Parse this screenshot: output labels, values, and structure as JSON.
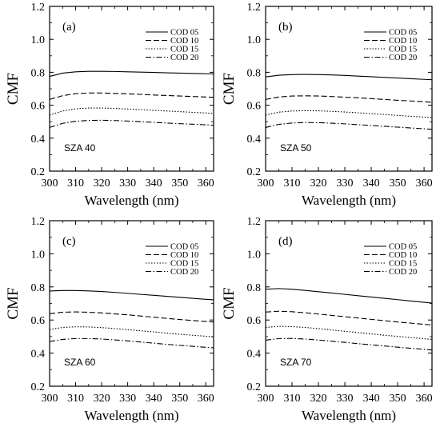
{
  "chart_data": [
    {
      "type": "line",
      "panel_label": "(a)",
      "annotation": "SZA 40",
      "xlabel": "Wavelength (nm)",
      "ylabel": "CMF",
      "xlim": [
        300,
        363
      ],
      "ylim": [
        0.2,
        1.2
      ],
      "xticks": [
        300,
        310,
        320,
        330,
        340,
        350,
        360
      ],
      "yticks": [
        "0.2",
        "0.4",
        "0.6",
        "0.8",
        "1.0",
        "1.2"
      ],
      "legend_position": "top-right",
      "x": [
        300,
        305,
        310,
        315,
        320,
        325,
        330,
        335,
        340,
        345,
        350,
        355,
        360,
        363
      ],
      "series": [
        {
          "name": "COD 05",
          "style": "solid",
          "values": [
            0.775,
            0.795,
            0.803,
            0.806,
            0.806,
            0.805,
            0.803,
            0.801,
            0.799,
            0.797,
            0.795,
            0.793,
            0.791,
            0.79
          ]
        },
        {
          "name": "COD 10",
          "style": "dashed",
          "values": [
            0.635,
            0.658,
            0.67,
            0.674,
            0.674,
            0.672,
            0.669,
            0.666,
            0.662,
            0.659,
            0.656,
            0.653,
            0.65,
            0.648
          ]
        },
        {
          "name": "COD 15",
          "style": "dotted",
          "values": [
            0.54,
            0.565,
            0.578,
            0.583,
            0.583,
            0.581,
            0.577,
            0.573,
            0.569,
            0.565,
            0.561,
            0.557,
            0.553,
            0.55
          ]
        },
        {
          "name": "COD 20",
          "style": "dashdot",
          "values": [
            0.465,
            0.49,
            0.503,
            0.508,
            0.509,
            0.507,
            0.504,
            0.5,
            0.496,
            0.492,
            0.488,
            0.485,
            0.481,
            0.479
          ]
        }
      ]
    },
    {
      "type": "line",
      "panel_label": "(b)",
      "annotation": "SZA 50",
      "xlabel": "Wavelength (nm)",
      "ylabel": "CMF",
      "xlim": [
        300,
        363
      ],
      "ylim": [
        0.2,
        1.2
      ],
      "xticks": [
        300,
        310,
        320,
        330,
        340,
        350,
        360
      ],
      "yticks": [
        "0.2",
        "0.4",
        "0.6",
        "0.8",
        "1.0",
        "1.2"
      ],
      "legend_position": "top-right",
      "x": [
        300,
        305,
        310,
        315,
        320,
        325,
        330,
        335,
        340,
        345,
        350,
        355,
        360,
        363
      ],
      "series": [
        {
          "name": "COD 05",
          "style": "solid",
          "values": [
            0.772,
            0.782,
            0.786,
            0.787,
            0.786,
            0.784,
            0.781,
            0.777,
            0.773,
            0.769,
            0.765,
            0.761,
            0.757,
            0.755
          ]
        },
        {
          "name": "COD 10",
          "style": "dashed",
          "values": [
            0.635,
            0.65,
            0.656,
            0.657,
            0.656,
            0.653,
            0.649,
            0.645,
            0.64,
            0.635,
            0.63,
            0.626,
            0.621,
            0.618
          ]
        },
        {
          "name": "COD 15",
          "style": "dotted",
          "values": [
            0.54,
            0.558,
            0.565,
            0.567,
            0.566,
            0.563,
            0.559,
            0.554,
            0.549,
            0.544,
            0.538,
            0.533,
            0.528,
            0.525
          ]
        },
        {
          "name": "COD 20",
          "style": "dashdot",
          "values": [
            0.465,
            0.484,
            0.492,
            0.495,
            0.494,
            0.491,
            0.487,
            0.482,
            0.477,
            0.472,
            0.467,
            0.462,
            0.457,
            0.454
          ]
        }
      ]
    },
    {
      "type": "line",
      "panel_label": "(c)",
      "annotation": "SZA 60",
      "xlabel": "Wavelength (nm)",
      "ylabel": "CMF",
      "xlim": [
        300,
        363
      ],
      "ylim": [
        0.2,
        1.2
      ],
      "xticks": [
        300,
        310,
        320,
        330,
        340,
        350,
        360
      ],
      "yticks": [
        "0.2",
        "0.4",
        "0.6",
        "0.8",
        "1.0",
        "1.2"
      ],
      "legend_position": "top-right",
      "x": [
        300,
        305,
        310,
        315,
        320,
        325,
        330,
        335,
        340,
        345,
        350,
        355,
        360,
        363
      ],
      "series": [
        {
          "name": "COD 05",
          "style": "solid",
          "values": [
            0.775,
            0.778,
            0.778,
            0.776,
            0.772,
            0.767,
            0.761,
            0.755,
            0.749,
            0.743,
            0.737,
            0.731,
            0.725,
            0.722
          ]
        },
        {
          "name": "COD 10",
          "style": "dashed",
          "values": [
            0.638,
            0.647,
            0.649,
            0.647,
            0.643,
            0.637,
            0.631,
            0.624,
            0.617,
            0.61,
            0.603,
            0.597,
            0.591,
            0.588
          ]
        },
        {
          "name": "COD 15",
          "style": "dotted",
          "values": [
            0.543,
            0.555,
            0.559,
            0.558,
            0.554,
            0.548,
            0.542,
            0.535,
            0.528,
            0.521,
            0.514,
            0.508,
            0.502,
            0.499
          ]
        },
        {
          "name": "COD 20",
          "style": "dashdot",
          "values": [
            0.47,
            0.483,
            0.488,
            0.488,
            0.485,
            0.48,
            0.474,
            0.467,
            0.46,
            0.453,
            0.447,
            0.441,
            0.435,
            0.432
          ]
        }
      ]
    },
    {
      "type": "line",
      "panel_label": "(d)",
      "annotation": "SZA 70",
      "xlabel": "Wavelength (nm)",
      "ylabel": "CMF",
      "xlim": [
        300,
        363
      ],
      "ylim": [
        0.2,
        1.2
      ],
      "xticks": [
        300,
        310,
        320,
        330,
        340,
        350,
        360
      ],
      "yticks": [
        "0.2",
        "0.4",
        "0.6",
        "0.8",
        "1.0",
        "1.2"
      ],
      "legend_position": "top-right",
      "x": [
        300,
        305,
        310,
        315,
        320,
        325,
        330,
        335,
        340,
        345,
        350,
        355,
        360,
        363
      ],
      "series": [
        {
          "name": "COD 05",
          "style": "solid",
          "values": [
            0.786,
            0.79,
            0.786,
            0.779,
            0.771,
            0.763,
            0.755,
            0.747,
            0.739,
            0.731,
            0.723,
            0.715,
            0.707,
            0.702
          ]
        },
        {
          "name": "COD 10",
          "style": "dashed",
          "values": [
            0.648,
            0.653,
            0.65,
            0.644,
            0.636,
            0.628,
            0.62,
            0.612,
            0.604,
            0.596,
            0.588,
            0.581,
            0.574,
            0.57
          ]
        },
        {
          "name": "COD 15",
          "style": "dotted",
          "values": [
            0.555,
            0.562,
            0.56,
            0.555,
            0.548,
            0.54,
            0.532,
            0.524,
            0.516,
            0.508,
            0.501,
            0.494,
            0.487,
            0.483
          ]
        },
        {
          "name": "COD 20",
          "style": "dashdot",
          "values": [
            0.478,
            0.488,
            0.489,
            0.485,
            0.479,
            0.472,
            0.465,
            0.457,
            0.45,
            0.443,
            0.436,
            0.429,
            0.423,
            0.419
          ]
        }
      ]
    }
  ]
}
